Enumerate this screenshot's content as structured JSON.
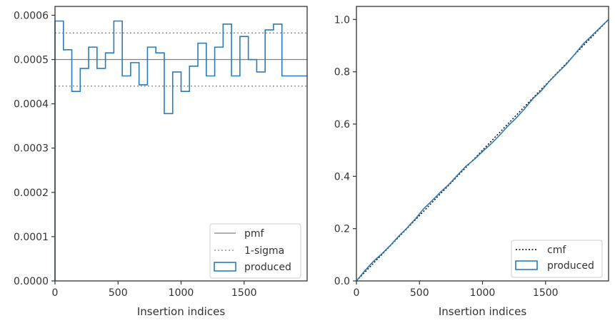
{
  "colors": {
    "produced": "#2b7bba",
    "pmf": "#808080",
    "sigma": "#808080",
    "cmf": "#000000",
    "frame": "#333333"
  },
  "chart_data": [
    {
      "type": "step",
      "xlabel": "Insertion indices",
      "ylabel": "",
      "xlim": [
        0,
        2000
      ],
      "ylim": [
        0,
        0.00062
      ],
      "xticks": [
        0,
        500,
        1000,
        1500
      ],
      "xtick_labels": [
        "0",
        "500",
        "1000",
        "1500"
      ],
      "yticks": [
        0,
        0.0001,
        0.0002,
        0.0003,
        0.0004,
        0.0005,
        0.0006
      ],
      "ytick_labels": [
        "0.0000",
        "0.0001",
        "0.0002",
        "0.0003",
        "0.0004",
        "0.0005",
        "0.0006"
      ],
      "bin_width": 66.67,
      "series": [
        {
          "name": "produced",
          "values": [
            0.000587,
            0.000522,
            0.000428,
            0.00048,
            0.000528,
            0.00048,
            0.000515,
            0.000587,
            0.000463,
            0.000493,
            0.000443,
            0.000528,
            0.000515,
            0.000378,
            0.000472,
            0.000428,
            0.000485,
            0.000537,
            0.000463,
            0.000528,
            0.00058,
            0.000463,
            0.000552,
            0.0005,
            0.000472,
            0.000567,
            0.00058,
            0.000463,
            0.000463,
            0.000463
          ]
        }
      ],
      "reference_lines": [
        {
          "name": "pmf",
          "value": 0.0005,
          "style": "solid"
        },
        {
          "name": "1-sigma",
          "value": 0.00056,
          "style": "dotted"
        },
        {
          "name": "1-sigma",
          "value": 0.00044,
          "style": "dotted"
        }
      ],
      "legend": {
        "position": "lower-right",
        "entries": [
          "pmf",
          "1-sigma",
          "produced"
        ]
      }
    },
    {
      "type": "line",
      "xlabel": "Insertion indices",
      "ylabel": "",
      "xlim": [
        0,
        2000
      ],
      "ylim": [
        0,
        1.05
      ],
      "xticks": [
        0,
        500,
        1000,
        1500
      ],
      "xtick_labels": [
        "0",
        "500",
        "1000",
        "1500"
      ],
      "yticks": [
        0,
        0.2,
        0.4,
        0.6,
        0.8,
        1.0
      ],
      "ytick_labels": [
        "0.0",
        "0.2",
        "0.4",
        "0.6",
        "0.8",
        "1.0"
      ],
      "series": [
        {
          "name": "cmf",
          "style": "dotted",
          "x": [
            0,
            2000
          ],
          "y": [
            0,
            1.0
          ]
        },
        {
          "name": "produced",
          "style": "step",
          "x": [
            0,
            67,
            133,
            200,
            267,
            333,
            400,
            467,
            533,
            600,
            667,
            733,
            800,
            867,
            933,
            1000,
            1067,
            1133,
            1200,
            1267,
            1333,
            1400,
            1467,
            1533,
            1600,
            1667,
            1733,
            1800,
            1867,
            1933,
            2000
          ],
          "y": [
            0,
            0.039,
            0.074,
            0.103,
            0.135,
            0.17,
            0.202,
            0.237,
            0.276,
            0.307,
            0.34,
            0.369,
            0.404,
            0.438,
            0.464,
            0.495,
            0.524,
            0.556,
            0.592,
            0.623,
            0.658,
            0.697,
            0.728,
            0.765,
            0.798,
            0.83,
            0.868,
            0.907,
            0.938,
            0.969,
            1.0
          ]
        }
      ],
      "legend": {
        "position": "lower-right",
        "entries": [
          "cmf",
          "produced"
        ]
      }
    }
  ]
}
